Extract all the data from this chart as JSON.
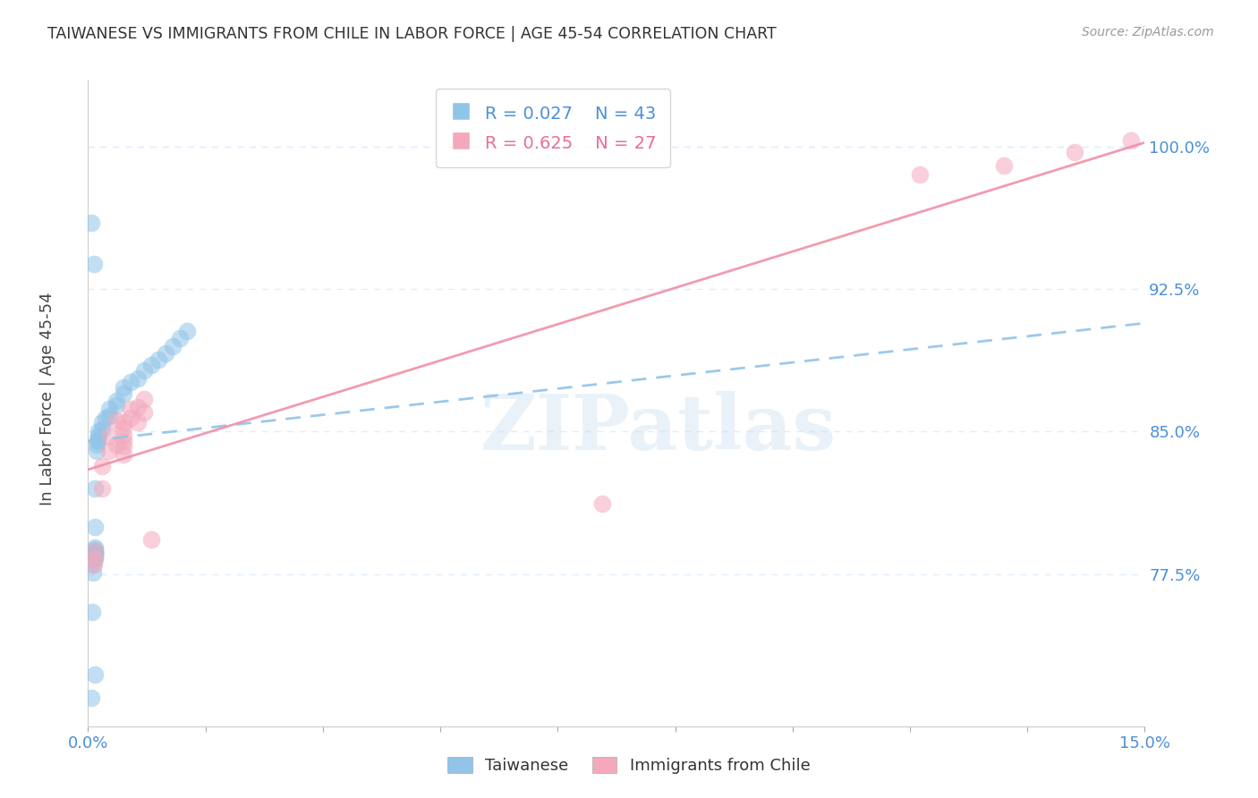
{
  "title": "TAIWANESE VS IMMIGRANTS FROM CHILE IN LABOR FORCE | AGE 45-54 CORRELATION CHART",
  "source": "Source: ZipAtlas.com",
  "ylabel": "In Labor Force | Age 45-54",
  "xlim": [
    0.0,
    0.15
  ],
  "ylim": [
    0.695,
    1.035
  ],
  "xticklabels_show": {
    "0.0": "0.0%",
    "0.15": "15.0%"
  },
  "ytick_vals": [
    0.775,
    0.85,
    0.925,
    1.0
  ],
  "ytick_labels": [
    "77.5%",
    "85.0%",
    "92.5%",
    "100.0%"
  ],
  "blue_color": "#90C4E8",
  "pink_color": "#F4A8BC",
  "blue_line_color": "#90C4E8",
  "pink_line_color": "#F090A8",
  "axis_tick_color": "#4A90D9",
  "grid_color": "#DDEEFF",
  "background_color": "#FFFFFF",
  "watermark": "ZIPatlas",
  "tw_trend_y0": 0.845,
  "tw_trend_y1": 0.907,
  "ch_trend_y0": 0.83,
  "ch_trend_y1": 1.002,
  "tw_x": [
    0.0005,
    0.0006,
    0.0007,
    0.0007,
    0.0008,
    0.0009,
    0.001,
    0.001,
    0.001,
    0.001,
    0.001,
    0.001,
    0.001,
    0.001,
    0.001,
    0.001,
    0.0012,
    0.0012,
    0.0013,
    0.0014,
    0.0015,
    0.0015,
    0.002,
    0.002,
    0.0025,
    0.003,
    0.003,
    0.004,
    0.004,
    0.005,
    0.005,
    0.006,
    0.007,
    0.008,
    0.009,
    0.01,
    0.011,
    0.012,
    0.013,
    0.014,
    0.0005,
    0.0008,
    0.001
  ],
  "tw_y": [
    0.71,
    0.755,
    0.776,
    0.78,
    0.783,
    0.785,
    0.784,
    0.785,
    0.786,
    0.786,
    0.786,
    0.787,
    0.788,
    0.789,
    0.8,
    0.82,
    0.84,
    0.843,
    0.845,
    0.846,
    0.848,
    0.85,
    0.851,
    0.855,
    0.857,
    0.858,
    0.862,
    0.864,
    0.866,
    0.87,
    0.873,
    0.876,
    0.878,
    0.882,
    0.885,
    0.888,
    0.891,
    0.895,
    0.899,
    0.903,
    0.96,
    0.938,
    0.722
  ],
  "ch_x": [
    0.0008,
    0.001,
    0.001,
    0.002,
    0.002,
    0.003,
    0.003,
    0.004,
    0.004,
    0.005,
    0.005,
    0.005,
    0.005,
    0.005,
    0.005,
    0.006,
    0.006,
    0.007,
    0.007,
    0.008,
    0.008,
    0.009,
    0.073,
    0.118,
    0.13,
    0.14,
    0.148
  ],
  "ch_y": [
    0.78,
    0.783,
    0.787,
    0.82,
    0.832,
    0.84,
    0.848,
    0.843,
    0.856,
    0.838,
    0.842,
    0.845,
    0.848,
    0.852,
    0.855,
    0.857,
    0.862,
    0.855,
    0.863,
    0.86,
    0.867,
    0.793,
    0.812,
    0.985,
    0.99,
    0.997,
    1.003
  ]
}
